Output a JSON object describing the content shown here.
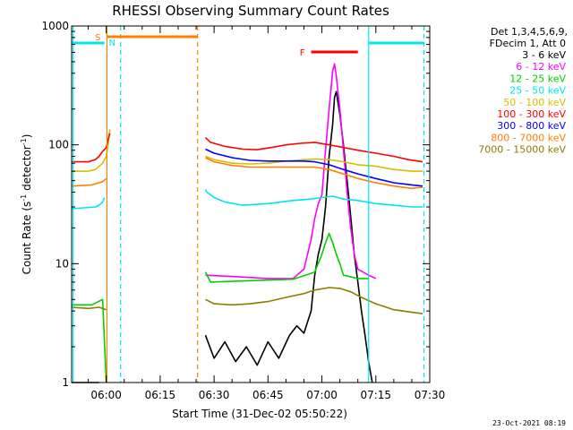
{
  "chart_data": {
    "type": "line",
    "title": "RHESSI Observing Summary Count Rates",
    "xlabel": "Start Time (31-Dec-02 05:50:22)",
    "ylabel_prefix": "Count Rate (s",
    "ylabel_sup1": "-1",
    "ylabel_mid": " detector",
    "ylabel_sup2": "-1",
    "ylabel_suffix": ")",
    "yscale": "log",
    "xlim": [
      "05:50:22",
      "07:30:00"
    ],
    "xlim_minutes": [
      -9.63,
      90.0
    ],
    "ylim": [
      1,
      1000
    ],
    "x_ticks": [
      {
        "minute": 0,
        "label": "06:00"
      },
      {
        "minute": 15,
        "label": "06:15"
      },
      {
        "minute": 30,
        "label": "06:30"
      },
      {
        "minute": 45,
        "label": "06:45"
      },
      {
        "minute": 60,
        "label": "07:00"
      },
      {
        "minute": 75,
        "label": "07:15"
      },
      {
        "minute": 90,
        "label": "07:30"
      }
    ],
    "y_ticks": [
      {
        "value": 1,
        "label": "1"
      },
      {
        "value": 10,
        "label": "10"
      },
      {
        "value": 100,
        "label": "100"
      },
      {
        "value": 1000,
        "label": "1000"
      }
    ],
    "legend_header": [
      "Det 1,3,4,5,6,9,",
      "FDecim 1, Att 0"
    ],
    "footer_date": "23-Oct-2021 08:19",
    "series": [
      {
        "name": "3 - 6 keV",
        "color": "#000000",
        "segments": [
          [
            [
              -9.6,
              1
            ],
            [
              -2,
              1
            ]
          ],
          [
            [
              27.6,
              2.5
            ],
            [
              30,
              1.6
            ],
            [
              33,
              2.2
            ],
            [
              36,
              1.5
            ],
            [
              39,
              2.0
            ],
            [
              42,
              1.4
            ],
            [
              45,
              2.2
            ],
            [
              48,
              1.6
            ],
            [
              51,
              2.5
            ],
            [
              53,
              3
            ],
            [
              55,
              2.6
            ],
            [
              57,
              4
            ],
            [
              58,
              8
            ],
            [
              59,
              12
            ],
            [
              60,
              16
            ],
            [
              61,
              30
            ],
            [
              62,
              80
            ],
            [
              63,
              150
            ],
            [
              63.5,
              250
            ],
            [
              64,
              280
            ],
            [
              65,
              180
            ],
            [
              66,
              100
            ],
            [
              67,
              50
            ],
            [
              68,
              25
            ],
            [
              69,
              12
            ],
            [
              70,
              7
            ],
            [
              71,
              4
            ],
            [
              72,
              2.5
            ],
            [
              73,
              1.5
            ],
            [
              74,
              1
            ]
          ]
        ]
      },
      {
        "name": "6 - 12 keV",
        "color": "#ff00ff",
        "segments": [
          [
            [
              27.6,
              8
            ],
            [
              35,
              7.8
            ],
            [
              45,
              7.5
            ],
            [
              52,
              7.5
            ],
            [
              55,
              9
            ],
            [
              57,
              16
            ],
            [
              58,
              24
            ],
            [
              59,
              32
            ],
            [
              60,
              38
            ],
            [
              61,
              90
            ],
            [
              62,
              200
            ],
            [
              63,
              420
            ],
            [
              63.5,
              480
            ],
            [
              64,
              380
            ],
            [
              65,
              200
            ],
            [
              66,
              90
            ],
            [
              67,
              40
            ],
            [
              68,
              20
            ],
            [
              69,
              12
            ],
            [
              70,
              9
            ],
            [
              73,
              8
            ],
            [
              75,
              7.5
            ]
          ]
        ]
      },
      {
        "name": "12 - 25 keV",
        "color": "#00d000",
        "segments": [
          [
            [
              -9.6,
              4.5
            ],
            [
              -4,
              4.5
            ],
            [
              -1,
              5
            ],
            [
              0,
              1
            ]
          ],
          [
            [
              27.6,
              8.5
            ],
            [
              29,
              7
            ],
            [
              40,
              7.2
            ],
            [
              52,
              7.4
            ],
            [
              58,
              8.5
            ],
            [
              60,
              12
            ],
            [
              61,
              15
            ],
            [
              62,
              18
            ],
            [
              63,
              15
            ],
            [
              64,
              12
            ],
            [
              65,
              10
            ],
            [
              66,
              8
            ],
            [
              70,
              7.5
            ],
            [
              73,
              7.5
            ]
          ]
        ]
      },
      {
        "name": "25 - 50 keV",
        "color": "#00e5ee",
        "segments": [
          [
            [
              -9.6,
              29
            ],
            [
              -3,
              30
            ],
            [
              -2,
              31
            ],
            [
              -1,
              33
            ],
            [
              -0.5,
              36
            ]
          ],
          [
            [
              27.6,
              42
            ],
            [
              28,
              40
            ],
            [
              30,
              36
            ],
            [
              33,
              33
            ],
            [
              38,
              31
            ],
            [
              45,
              32
            ],
            [
              52,
              34
            ],
            [
              57,
              35
            ],
            [
              60,
              36
            ],
            [
              63,
              37
            ],
            [
              66,
              35
            ],
            [
              70,
              34
            ],
            [
              75,
              32
            ],
            [
              80,
              31
            ],
            [
              85,
              30
            ],
            [
              88,
              30
            ]
          ]
        ]
      },
      {
        "name": "50 - 100 keV",
        "color": "#d4c000",
        "segments": [
          [
            [
              -9.6,
              60
            ],
            [
              -5,
              60
            ],
            [
              -3,
              62
            ],
            [
              -1,
              70
            ],
            [
              0,
              80
            ],
            [
              0.5,
              100
            ],
            [
              1,
              135
            ]
          ],
          [
            [
              27.6,
              80
            ],
            [
              30,
              75
            ],
            [
              35,
              70
            ],
            [
              40,
              69
            ],
            [
              45,
              70
            ],
            [
              50,
              73
            ],
            [
              55,
              75
            ],
            [
              58,
              76
            ],
            [
              62,
              75
            ],
            [
              66,
              72
            ],
            [
              70,
              68
            ],
            [
              75,
              66
            ],
            [
              80,
              62
            ],
            [
              85,
              60
            ],
            [
              88,
              60
            ]
          ]
        ]
      },
      {
        "name": "100 - 300 keV",
        "color": "#ff0000",
        "segments": [
          [
            [
              -9.6,
              72
            ],
            [
              -5,
              72
            ],
            [
              -3,
              75
            ],
            [
              -2,
              80
            ],
            [
              -1,
              88
            ],
            [
              0,
              95
            ],
            [
              0.5,
              110
            ],
            [
              1,
              125
            ]
          ],
          [
            [
              27.6,
              115
            ],
            [
              29,
              105
            ],
            [
              33,
              97
            ],
            [
              38,
              92
            ],
            [
              42,
              91
            ],
            [
              46,
              95
            ],
            [
              50,
              100
            ],
            [
              54,
              103
            ],
            [
              58,
              105
            ],
            [
              62,
              100
            ],
            [
              66,
              95
            ],
            [
              70,
              90
            ],
            [
              75,
              85
            ],
            [
              80,
              80
            ],
            [
              84,
              75
            ],
            [
              88,
              72
            ]
          ]
        ]
      },
      {
        "name": "300 - 800 keV",
        "color": "#0000ff",
        "segments": [
          [
            [
              27.6,
              92
            ],
            [
              30,
              85
            ],
            [
              35,
              78
            ],
            [
              40,
              74
            ],
            [
              45,
              73
            ],
            [
              50,
              73
            ],
            [
              55,
              73
            ],
            [
              58,
              72
            ],
            [
              62,
              68
            ],
            [
              66,
              62
            ],
            [
              70,
              57
            ],
            [
              75,
              52
            ],
            [
              80,
              48
            ],
            [
              85,
              46
            ],
            [
              88,
              45
            ]
          ]
        ]
      },
      {
        "name": "800 - 7000 keV",
        "color": "#ff8000",
        "segments": [
          [
            [
              -9.6,
              45
            ],
            [
              -4,
              46
            ],
            [
              -1,
              49
            ],
            [
              0,
              52
            ]
          ],
          [
            [
              27.6,
              78
            ],
            [
              30,
              72
            ],
            [
              35,
              67
            ],
            [
              40,
              65
            ],
            [
              45,
              65
            ],
            [
              50,
              65
            ],
            [
              55,
              65
            ],
            [
              58,
              65
            ],
            [
              62,
              62
            ],
            [
              66,
              57
            ],
            [
              70,
              52
            ],
            [
              75,
              48
            ],
            [
              80,
              45
            ],
            [
              85,
              43
            ],
            [
              88,
              44
            ]
          ]
        ]
      },
      {
        "name": "7000 - 15000 keV",
        "color": "#8b7d00",
        "segments": [
          [
            [
              -9.6,
              4.3
            ],
            [
              -5,
              4.2
            ],
            [
              -2,
              4.3
            ],
            [
              0,
              4.1
            ]
          ],
          [
            [
              27.6,
              5
            ],
            [
              30,
              4.6
            ],
            [
              35,
              4.5
            ],
            [
              40,
              4.6
            ],
            [
              45,
              4.8
            ],
            [
              50,
              5.2
            ],
            [
              55,
              5.6
            ],
            [
              58,
              6
            ],
            [
              62,
              6.3
            ],
            [
              65,
              6.2
            ],
            [
              68,
              5.8
            ],
            [
              71,
              5.2
            ],
            [
              75,
              4.6
            ],
            [
              80,
              4.1
            ],
            [
              85,
              3.9
            ],
            [
              88,
              3.8
            ]
          ]
        ]
      }
    ],
    "vlines": [
      {
        "minute": 0.2,
        "color": "#ff8000",
        "style": "solid"
      },
      {
        "minute": 25.4,
        "color": "#ff8000",
        "style": "dashed"
      },
      {
        "minute": -9.2,
        "color": "#00e5ee",
        "style": "solid"
      },
      {
        "minute": 4.0,
        "color": "#00e5ee",
        "style": "dashed"
      },
      {
        "minute": 73.0,
        "color": "#00e5ee",
        "style": "solid"
      },
      {
        "minute": 88.4,
        "color": "#00e5ee",
        "style": "dashed"
      }
    ],
    "bars": [
      {
        "label": "S",
        "color": "#ff8000",
        "x_start": 0.2,
        "x_end": 25.4,
        "level": 1
      },
      {
        "label": "N",
        "color": "#00e5ee",
        "x_start": -9.6,
        "x_end": -0.5,
        "level": 2
      },
      {
        "label": "",
        "color": "#00e5ee",
        "x_start": 73.0,
        "x_end": 88.4,
        "level": 2
      },
      {
        "label": "F",
        "color": "#ff0000",
        "x_start": 57.0,
        "x_end": 70.0,
        "level": 3
      }
    ]
  }
}
